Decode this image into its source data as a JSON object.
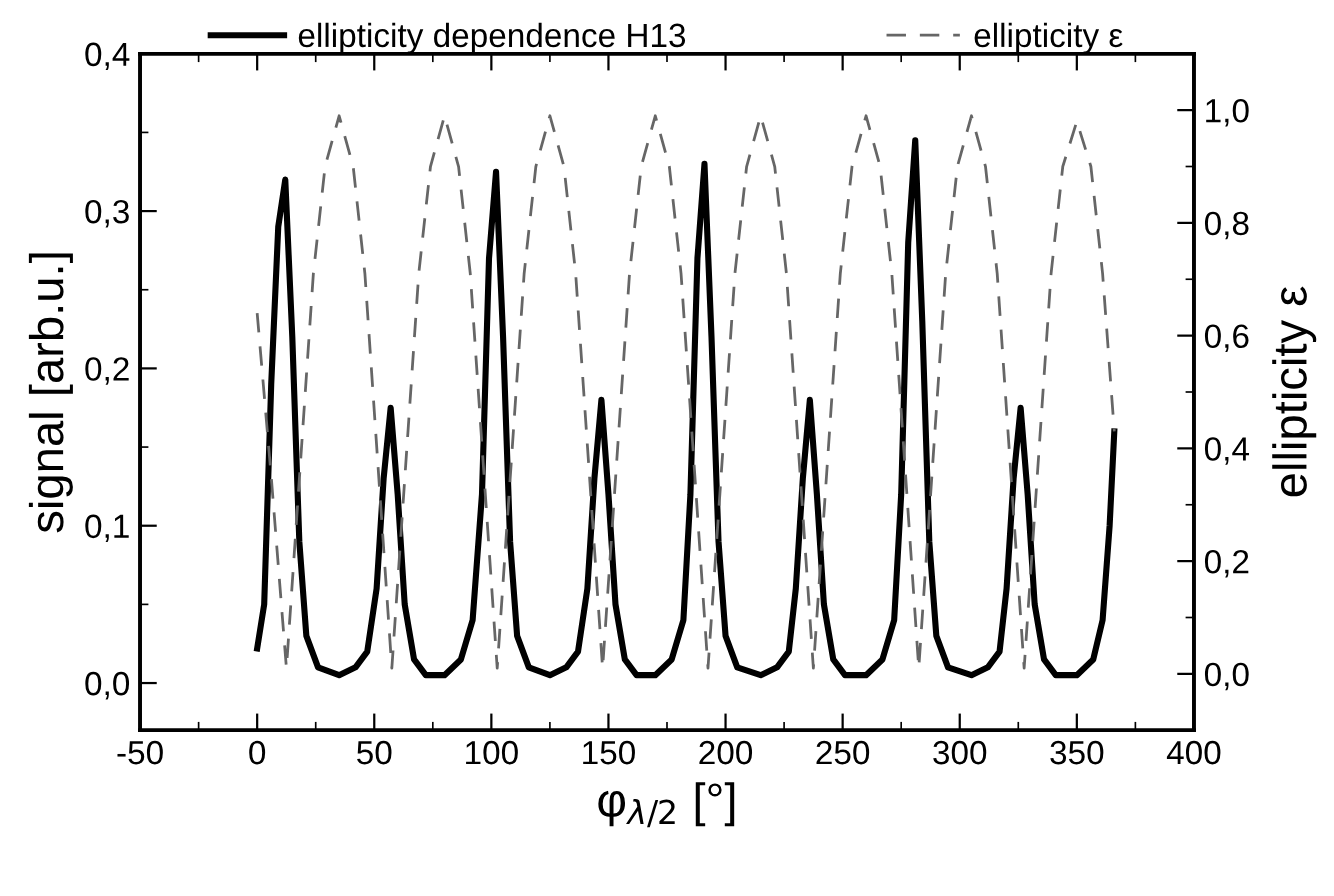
{
  "chart_data": {
    "type": "line",
    "xlabel": "φ$_{λ/2}$ [°]",
    "ylabel": "signal [arb.u.]",
    "y2label": "ellipticity ε",
    "xlim": [
      -50,
      400
    ],
    "xticks": [
      -50,
      0,
      50,
      100,
      150,
      200,
      250,
      300,
      350,
      400
    ],
    "ylim": [
      -0.03,
      0.4
    ],
    "yticks": [
      {
        "value": 0.0,
        "label": "0,0"
      },
      {
        "value": 0.1,
        "label": "0,1"
      },
      {
        "value": 0.2,
        "label": "0,2"
      },
      {
        "value": 0.3,
        "label": "0,3"
      },
      {
        "value": 0.4,
        "label": "0,4"
      }
    ],
    "y2lim": [
      -0.1,
      1.1
    ],
    "y2ticks": [
      {
        "value": 0.0,
        "label": "0,0"
      },
      {
        "value": 0.2,
        "label": "0,2"
      },
      {
        "value": 0.4,
        "label": "0,4"
      },
      {
        "value": 0.6,
        "label": "0,6"
      },
      {
        "value": 0.8,
        "label": "0,8"
      },
      {
        "value": 1.0,
        "label": "1,0"
      }
    ],
    "grid": false,
    "legend": "top",
    "marker": "none",
    "series": [
      {
        "name": "ellipticity dependence H13",
        "color": "#000000",
        "line_style": "solid",
        "x": [
          0,
          3,
          6,
          9,
          12,
          15,
          18,
          21,
          26,
          35,
          42,
          47,
          51,
          54,
          57,
          60,
          63,
          67,
          72,
          80,
          87,
          92,
          96,
          99,
          102,
          105,
          108,
          111,
          116,
          125,
          132,
          137,
          141,
          144,
          147,
          150,
          153,
          157,
          162,
          170,
          177,
          182,
          185,
          188,
          191,
          194,
          197,
          200,
          205,
          215,
          222,
          227,
          230,
          233,
          236,
          239,
          242,
          246,
          251,
          260,
          267,
          272,
          275,
          278,
          281,
          284,
          287,
          290,
          295,
          305,
          312,
          317,
          320,
          323,
          326,
          329,
          332,
          336,
          341,
          350,
          357,
          361,
          364,
          366
        ],
        "values": [
          0.022,
          0.05,
          0.19,
          0.29,
          0.32,
          0.22,
          0.09,
          0.03,
          0.01,
          0.005,
          0.01,
          0.02,
          0.06,
          0.13,
          0.175,
          0.12,
          0.05,
          0.015,
          0.005,
          0.005,
          0.015,
          0.04,
          0.12,
          0.27,
          0.325,
          0.22,
          0.09,
          0.03,
          0.01,
          0.005,
          0.01,
          0.02,
          0.06,
          0.13,
          0.18,
          0.12,
          0.05,
          0.015,
          0.005,
          0.005,
          0.015,
          0.04,
          0.12,
          0.27,
          0.33,
          0.22,
          0.09,
          0.03,
          0.01,
          0.005,
          0.01,
          0.02,
          0.06,
          0.13,
          0.18,
          0.12,
          0.05,
          0.015,
          0.005,
          0.005,
          0.015,
          0.04,
          0.12,
          0.28,
          0.345,
          0.23,
          0.09,
          0.03,
          0.01,
          0.005,
          0.01,
          0.02,
          0.06,
          0.13,
          0.175,
          0.12,
          0.05,
          0.015,
          0.005,
          0.005,
          0.015,
          0.04,
          0.1,
          0.16
        ]
      },
      {
        "name": "ellipticity ε",
        "color": "#666666",
        "line_style": "dashed",
        "axis": "y2",
        "x": [
          0,
          6,
          12.5,
          24,
          29,
          35,
          41,
          46,
          57.5,
          69,
          74,
          80,
          86,
          91,
          102.5,
          114,
          119,
          125,
          131,
          136,
          147.5,
          159,
          164,
          170,
          176,
          181,
          192.5,
          204,
          209,
          215,
          221,
          226,
          237.5,
          249,
          254,
          260,
          266,
          271,
          282.5,
          294,
          299,
          305,
          311,
          316,
          327.5,
          339,
          344,
          350,
          356,
          361,
          366
        ],
        "values": [
          0.64,
          0.35,
          0.01,
          0.71,
          0.9,
          0.99,
          0.9,
          0.71,
          0.01,
          0.71,
          0.9,
          0.99,
          0.9,
          0.71,
          0.01,
          0.71,
          0.9,
          0.99,
          0.9,
          0.71,
          0.01,
          0.71,
          0.9,
          0.99,
          0.9,
          0.71,
          0.01,
          0.71,
          0.9,
          0.99,
          0.9,
          0.71,
          0.01,
          0.71,
          0.9,
          0.99,
          0.9,
          0.71,
          0.01,
          0.71,
          0.9,
          0.99,
          0.9,
          0.71,
          0.01,
          0.71,
          0.9,
          0.98,
          0.9,
          0.71,
          0.43
        ]
      }
    ]
  }
}
